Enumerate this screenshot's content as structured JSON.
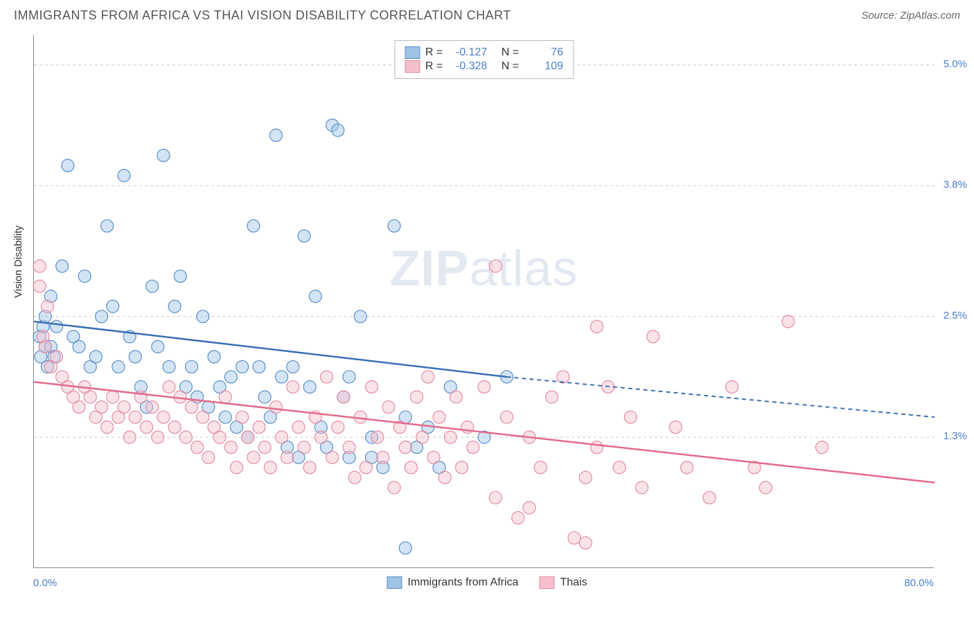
{
  "header": {
    "title": "IMMIGRANTS FROM AFRICA VS THAI VISION DISABILITY CORRELATION CHART",
    "source": "Source: ZipAtlas.com"
  },
  "watermark": {
    "zip": "ZIP",
    "atlas": "atlas"
  },
  "ylabel": "Vision Disability",
  "chart": {
    "type": "scatter",
    "xlim": [
      0,
      80
    ],
    "ylim": [
      0,
      5.3
    ],
    "xtick_labels": [
      "0.0%",
      "80.0%"
    ],
    "ytick_values": [
      1.3,
      2.5,
      3.8,
      5.0
    ],
    "ytick_labels": [
      "1.3%",
      "2.5%",
      "3.8%",
      "5.0%"
    ],
    "background_color": "#ffffff",
    "grid_color": "#cccccc",
    "axis_color": "#888888",
    "marker_radius": 9,
    "marker_opacity": 0.45,
    "tick_font_color": "#4a7ec9",
    "tick_fontsize": 15
  },
  "series": [
    {
      "name": "Immigrants from Africa",
      "color_fill": "#9ec3e6",
      "color_stroke": "#5b8fc7",
      "line_color": "#3b6fb5",
      "R": "-0.127",
      "N": "76",
      "trend": {
        "x1": 0,
        "y1": 2.45,
        "x2": 42,
        "y2": 1.9,
        "x3": 80,
        "y3": 1.5,
        "dash_from": 42
      },
      "points": [
        [
          0.5,
          2.3
        ],
        [
          0.6,
          2.1
        ],
        [
          0.8,
          2.4
        ],
        [
          1,
          2.2
        ],
        [
          1,
          2.5
        ],
        [
          1.2,
          2.0
        ],
        [
          1.5,
          2.7
        ],
        [
          1.5,
          2.2
        ],
        [
          1.8,
          2.1
        ],
        [
          2,
          2.4
        ],
        [
          2.5,
          3.0
        ],
        [
          3,
          4.0
        ],
        [
          3.5,
          2.3
        ],
        [
          4,
          2.2
        ],
        [
          4.5,
          2.9
        ],
        [
          5,
          2.0
        ],
        [
          5.5,
          2.1
        ],
        [
          6,
          2.5
        ],
        [
          6.5,
          3.4
        ],
        [
          7,
          2.6
        ],
        [
          7.5,
          2.0
        ],
        [
          8,
          3.9
        ],
        [
          8.5,
          2.3
        ],
        [
          9,
          2.1
        ],
        [
          9.5,
          1.8
        ],
        [
          10,
          1.6
        ],
        [
          10.5,
          2.8
        ],
        [
          11,
          2.2
        ],
        [
          11.5,
          4.1
        ],
        [
          12,
          2.0
        ],
        [
          12.5,
          2.6
        ],
        [
          13,
          2.9
        ],
        [
          13.5,
          1.8
        ],
        [
          14,
          2.0
        ],
        [
          14.5,
          1.7
        ],
        [
          15,
          2.5
        ],
        [
          15.5,
          1.6
        ],
        [
          16,
          2.1
        ],
        [
          16.5,
          1.8
        ],
        [
          17,
          1.5
        ],
        [
          17.5,
          1.9
        ],
        [
          18,
          1.4
        ],
        [
          18.5,
          2.0
        ],
        [
          19,
          1.3
        ],
        [
          19.5,
          3.4
        ],
        [
          20,
          2.0
        ],
        [
          20.5,
          1.7
        ],
        [
          21,
          1.5
        ],
        [
          21.5,
          4.3
        ],
        [
          22,
          1.9
        ],
        [
          22.5,
          1.2
        ],
        [
          23,
          2.0
        ],
        [
          23.5,
          1.1
        ],
        [
          24,
          3.3
        ],
        [
          24.5,
          1.8
        ],
        [
          25,
          2.7
        ],
        [
          25.5,
          1.4
        ],
        [
          26,
          1.2
        ],
        [
          26.5,
          4.4
        ],
        [
          27,
          4.35
        ],
        [
          27.5,
          1.7
        ],
        [
          28,
          1.9
        ],
        [
          29,
          2.5
        ],
        [
          30,
          1.1
        ],
        [
          31,
          1.0
        ],
        [
          32,
          3.4
        ],
        [
          33,
          1.5
        ],
        [
          34,
          1.2
        ],
        [
          35,
          1.4
        ],
        [
          36,
          1.0
        ],
        [
          37,
          1.8
        ],
        [
          40,
          1.3
        ],
        [
          42,
          1.9
        ],
        [
          33,
          0.2
        ],
        [
          30,
          1.3
        ],
        [
          28,
          1.1
        ]
      ]
    },
    {
      "name": "Thais",
      "color_fill": "#f4c0cd",
      "color_stroke": "#e38ba3",
      "line_color": "#e26b8a",
      "R": "-0.328",
      "N": "109",
      "trend": {
        "x1": 0,
        "y1": 1.85,
        "x2": 80,
        "y2": 0.85
      },
      "points": [
        [
          0.5,
          3.0
        ],
        [
          0.5,
          2.8
        ],
        [
          0.8,
          2.3
        ],
        [
          1,
          2.2
        ],
        [
          1.2,
          2.6
        ],
        [
          1.5,
          2.0
        ],
        [
          2,
          2.1
        ],
        [
          2.5,
          1.9
        ],
        [
          3,
          1.8
        ],
        [
          3.5,
          1.7
        ],
        [
          4,
          1.6
        ],
        [
          4.5,
          1.8
        ],
        [
          5,
          1.7
        ],
        [
          5.5,
          1.5
        ],
        [
          6,
          1.6
        ],
        [
          6.5,
          1.4
        ],
        [
          7,
          1.7
        ],
        [
          7.5,
          1.5
        ],
        [
          8,
          1.6
        ],
        [
          8.5,
          1.3
        ],
        [
          9,
          1.5
        ],
        [
          9.5,
          1.7
        ],
        [
          10,
          1.4
        ],
        [
          10.5,
          1.6
        ],
        [
          11,
          1.3
        ],
        [
          11.5,
          1.5
        ],
        [
          12,
          1.8
        ],
        [
          12.5,
          1.4
        ],
        [
          13,
          1.7
        ],
        [
          13.5,
          1.3
        ],
        [
          14,
          1.6
        ],
        [
          14.5,
          1.2
        ],
        [
          15,
          1.5
        ],
        [
          15.5,
          1.1
        ],
        [
          16,
          1.4
        ],
        [
          16.5,
          1.3
        ],
        [
          17,
          1.7
        ],
        [
          17.5,
          1.2
        ],
        [
          18,
          1.0
        ],
        [
          18.5,
          1.5
        ],
        [
          19,
          1.3
        ],
        [
          19.5,
          1.1
        ],
        [
          20,
          1.4
        ],
        [
          20.5,
          1.2
        ],
        [
          21,
          1.0
        ],
        [
          21.5,
          1.6
        ],
        [
          22,
          1.3
        ],
        [
          22.5,
          1.1
        ],
        [
          23,
          1.8
        ],
        [
          23.5,
          1.4
        ],
        [
          24,
          1.2
        ],
        [
          24.5,
          1.0
        ],
        [
          25,
          1.5
        ],
        [
          25.5,
          1.3
        ],
        [
          26,
          1.9
        ],
        [
          26.5,
          1.1
        ],
        [
          27,
          1.4
        ],
        [
          27.5,
          1.7
        ],
        [
          28,
          1.2
        ],
        [
          28.5,
          0.9
        ],
        [
          29,
          1.5
        ],
        [
          29.5,
          1.0
        ],
        [
          30,
          1.8
        ],
        [
          30.5,
          1.3
        ],
        [
          31,
          1.1
        ],
        [
          31.5,
          1.6
        ],
        [
          32,
          0.8
        ],
        [
          32.5,
          1.4
        ],
        [
          33,
          1.2
        ],
        [
          33.5,
          1.0
        ],
        [
          34,
          1.7
        ],
        [
          34.5,
          1.3
        ],
        [
          35,
          1.9
        ],
        [
          35.5,
          1.1
        ],
        [
          36,
          1.5
        ],
        [
          36.5,
          0.9
        ],
        [
          37,
          1.3
        ],
        [
          37.5,
          1.7
        ],
        [
          38,
          1.0
        ],
        [
          38.5,
          1.4
        ],
        [
          39,
          1.2
        ],
        [
          40,
          1.8
        ],
        [
          41,
          3.0
        ],
        [
          42,
          1.5
        ],
        [
          43,
          0.5
        ],
        [
          44,
          1.3
        ],
        [
          45,
          1.0
        ],
        [
          46,
          1.7
        ],
        [
          47,
          1.9
        ],
        [
          48,
          0.3
        ],
        [
          49,
          0.25
        ],
        [
          50,
          1.2
        ],
        [
          50,
          2.4
        ],
        [
          51,
          1.8
        ],
        [
          52,
          1.0
        ],
        [
          53,
          1.5
        ],
        [
          54,
          0.8
        ],
        [
          55,
          2.3
        ],
        [
          57,
          1.4
        ],
        [
          58,
          1.0
        ],
        [
          60,
          0.7
        ],
        [
          62,
          1.8
        ],
        [
          64,
          1.0
        ],
        [
          65,
          0.8
        ],
        [
          67,
          2.45
        ],
        [
          70,
          1.2
        ],
        [
          49,
          0.9
        ],
        [
          44,
          0.6
        ],
        [
          41,
          0.7
        ]
      ]
    }
  ],
  "stats_legend": {
    "labels": {
      "R": "R =",
      "N": "N ="
    }
  },
  "bottom_legend": {
    "items": [
      "Immigrants from Africa",
      "Thais"
    ]
  }
}
